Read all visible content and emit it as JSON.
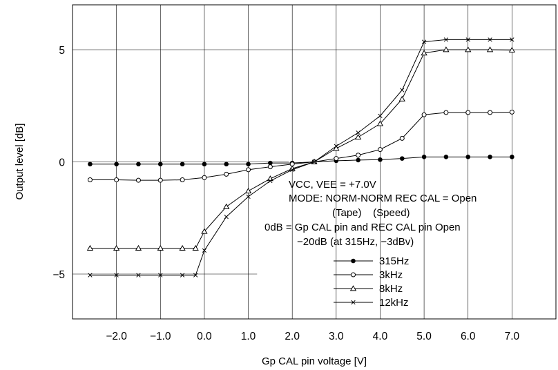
{
  "chart_data": {
    "type": "line",
    "xlabel": "Gp CAL pin voltage [V]",
    "ylabel": "Output level [dB]",
    "xlim": [
      -3.0,
      8.0
    ],
    "ylim": [
      -7.0,
      7.0
    ],
    "grid": true,
    "x_ticks": [
      {
        "value": -2.0,
        "label": "−2.0"
      },
      {
        "value": -1.0,
        "label": "−1.0"
      },
      {
        "value": 0.0,
        "label": "0.0"
      },
      {
        "value": 1.0,
        "label": "1.0"
      },
      {
        "value": 2.0,
        "label": "2.0"
      },
      {
        "value": 3.0,
        "label": "3.0"
      },
      {
        "value": 4.0,
        "label": "4.0"
      },
      {
        "value": 5.0,
        "label": "5.0"
      },
      {
        "value": 6.0,
        "label": "6.0"
      },
      {
        "value": 7.0,
        "label": "7.0"
      }
    ],
    "y_ticks": [
      {
        "value": 5,
        "label": "5"
      },
      {
        "value": 0,
        "label": "0"
      },
      {
        "value": -5,
        "label": "−5"
      }
    ],
    "annotations": [
      "VCC, VEE = +7.0V",
      "MODE: NORM-NORM REC CAL = Open",
      "(Tape)    (Speed)",
      "0dB = Gp CAL pin and REC CAL pin Open",
      "−20dB (at 315Hz, −3dBv)"
    ],
    "legend_placement": "inside-lower-center",
    "series": [
      {
        "name": "315Hz",
        "marker": "filled-circle",
        "x": [
          -2.6,
          -2.0,
          -1.5,
          -1.0,
          -0.5,
          0.0,
          0.5,
          1.0,
          1.5,
          2.0,
          2.5,
          3.0,
          3.5,
          4.0,
          4.5,
          5.0,
          5.5,
          6.0,
          6.5,
          7.0
        ],
        "y": [
          -0.1,
          -0.1,
          -0.1,
          -0.1,
          -0.1,
          -0.1,
          -0.1,
          -0.1,
          -0.05,
          -0.05,
          0.0,
          0.05,
          0.08,
          0.1,
          0.15,
          0.22,
          0.22,
          0.22,
          0.22,
          0.22
        ]
      },
      {
        "name": "3kHz",
        "marker": "open-circle",
        "x": [
          -2.6,
          -2.0,
          -1.5,
          -1.0,
          -0.5,
          0.0,
          0.5,
          1.0,
          1.5,
          2.0,
          2.5,
          3.0,
          3.5,
          4.0,
          4.5,
          5.0,
          5.5,
          6.0,
          6.5,
          7.0
        ],
        "y": [
          -0.8,
          -0.8,
          -0.82,
          -0.82,
          -0.8,
          -0.7,
          -0.55,
          -0.35,
          -0.22,
          -0.1,
          0.0,
          0.15,
          0.3,
          0.55,
          1.05,
          2.1,
          2.2,
          2.2,
          2.2,
          2.22
        ]
      },
      {
        "name": "8kHz",
        "marker": "open-triangle",
        "x": [
          -2.6,
          -2.0,
          -1.5,
          -1.0,
          -0.5,
          -0.2,
          0.0,
          0.5,
          1.0,
          1.5,
          2.0,
          2.5,
          3.0,
          3.5,
          4.0,
          4.5,
          5.0,
          5.5,
          6.0,
          6.5,
          7.0
        ],
        "y": [
          -3.85,
          -3.85,
          -3.85,
          -3.85,
          -3.85,
          -3.85,
          -3.1,
          -2.0,
          -1.3,
          -0.75,
          -0.3,
          0.0,
          0.6,
          1.1,
          1.7,
          2.8,
          4.85,
          5.0,
          5.0,
          5.0,
          4.98
        ]
      },
      {
        "name": "12kHz",
        "marker": "cross",
        "x": [
          -2.6,
          -2.0,
          -1.5,
          -1.0,
          -0.5,
          -0.2,
          0.0,
          0.5,
          1.0,
          1.5,
          2.0,
          2.5,
          3.0,
          3.5,
          4.0,
          4.5,
          5.0,
          5.5,
          6.0,
          6.5,
          7.0
        ],
        "y": [
          -5.05,
          -5.05,
          -5.05,
          -5.05,
          -5.05,
          -5.05,
          -3.95,
          -2.45,
          -1.55,
          -0.85,
          -0.35,
          0.0,
          0.7,
          1.3,
          2.05,
          3.2,
          5.35,
          5.45,
          5.45,
          5.45,
          5.45
        ]
      }
    ]
  }
}
